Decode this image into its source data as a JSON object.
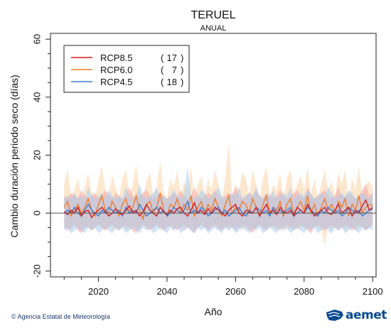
{
  "chart_data": {
    "type": "line",
    "title": "TERUEL",
    "subtitle": "ANUAL",
    "xlabel": "Año",
    "ylabel": "Cambio duración periodo seco (días)",
    "xlim": [
      2006,
      2101
    ],
    "ylim": [
      -22,
      62
    ],
    "xticks": [
      2020,
      2040,
      2060,
      2080,
      2100
    ],
    "yticks": [
      -20,
      0,
      20,
      40,
      60
    ],
    "grid": false,
    "legend_position": "top-left",
    "reference_line": 0,
    "x": [
      2010,
      2011,
      2012,
      2013,
      2014,
      2015,
      2016,
      2017,
      2018,
      2019,
      2020,
      2021,
      2022,
      2023,
      2024,
      2025,
      2026,
      2027,
      2028,
      2029,
      2030,
      2031,
      2032,
      2033,
      2034,
      2035,
      2036,
      2037,
      2038,
      2039,
      2040,
      2041,
      2042,
      2043,
      2044,
      2045,
      2046,
      2047,
      2048,
      2049,
      2050,
      2051,
      2052,
      2053,
      2054,
      2055,
      2056,
      2057,
      2058,
      2059,
      2060,
      2061,
      2062,
      2063,
      2064,
      2065,
      2066,
      2067,
      2068,
      2069,
      2070,
      2071,
      2072,
      2073,
      2074,
      2075,
      2076,
      2077,
      2078,
      2079,
      2080,
      2081,
      2082,
      2083,
      2084,
      2085,
      2086,
      2087,
      2088,
      2089,
      2090,
      2091,
      2092,
      2093,
      2094,
      2095,
      2096,
      2097,
      2098,
      2099,
      2100
    ],
    "series": [
      {
        "name": "RCP8.5",
        "models": "17",
        "color": "#d7191c",
        "band_color": "#f4a6a6",
        "values": [
          0.5,
          -0.5,
          1,
          0,
          2,
          -1,
          0.5,
          1,
          -1.5,
          0,
          1,
          2,
          0.5,
          -1,
          0,
          1.5,
          0,
          -0.5,
          1,
          2.5,
          0,
          1,
          -1,
          0.5,
          3,
          1,
          0,
          -1,
          2,
          0.5,
          -0.5,
          1,
          0,
          1.5,
          2,
          0,
          -1,
          1,
          3.5,
          0,
          1,
          -0.5,
          1.5,
          0,
          2,
          1,
          0,
          -1,
          1,
          2,
          3,
          0,
          -1,
          1,
          0.5,
          0,
          2,
          -1,
          1,
          3,
          0,
          1,
          -0.5,
          2,
          0.5,
          0,
          1,
          -1,
          2,
          1,
          0,
          3,
          1,
          -1,
          0,
          1,
          2,
          0,
          -0.5,
          1,
          3,
          0,
          1,
          2,
          -1,
          1,
          0,
          2.5,
          4.5,
          1,
          2
        ],
        "band_lo": [
          -5,
          -6,
          -5,
          -4,
          -6,
          -7,
          -5,
          -5,
          -6,
          -5,
          -4,
          -5,
          -6,
          -5,
          -4,
          -5,
          -6,
          -5,
          -4,
          -5,
          -6,
          -7,
          -5,
          -4,
          -5,
          -6,
          -5,
          -4,
          -5,
          -6,
          -5,
          -4,
          -5,
          -6,
          -5,
          -4,
          -5,
          -6,
          -7,
          -5,
          -4,
          -5,
          -6,
          -5,
          -4,
          -5,
          -6,
          -5,
          -4,
          -5,
          -6,
          -5,
          -4,
          -5,
          -6,
          -7,
          -5,
          -4,
          -5,
          -6,
          -5,
          -4,
          -5,
          -6,
          -5,
          -4,
          -5,
          -6,
          -5,
          -4,
          -5,
          -6,
          -7,
          -5,
          -4,
          -5,
          -6,
          -5,
          -4,
          -5,
          -6,
          -5,
          -4,
          -5,
          -6,
          -5,
          -4,
          -5,
          -6,
          -5,
          -4
        ],
        "band_hi": [
          6,
          5,
          7,
          6,
          5,
          8,
          6,
          5,
          6,
          7,
          5,
          6,
          8,
          6,
          5,
          7,
          6,
          5,
          6,
          9,
          6,
          5,
          6,
          7,
          8,
          6,
          5,
          6,
          7,
          6,
          5,
          6,
          7,
          6,
          8,
          6,
          5,
          6,
          9,
          6,
          5,
          6,
          7,
          6,
          8,
          6,
          5,
          6,
          7,
          6,
          9,
          6,
          5,
          6,
          7,
          6,
          8,
          6,
          5,
          7,
          6,
          5,
          6,
          8,
          6,
          5,
          6,
          7,
          8,
          6,
          5,
          9,
          6,
          5,
          6,
          7,
          8,
          6,
          5,
          6,
          9,
          6,
          5,
          7,
          6,
          5,
          6,
          8,
          10,
          6,
          7
        ]
      },
      {
        "name": "RCP6.0",
        "models": "7",
        "color": "#f17c2a",
        "band_color": "#fcd3a7",
        "values": [
          2,
          4,
          -1,
          1,
          3,
          0,
          2,
          5,
          1,
          -1,
          3,
          6,
          1,
          0,
          4,
          2,
          -1,
          3,
          5,
          0,
          2,
          6,
          1,
          -2,
          3,
          4,
          0,
          2,
          7,
          1,
          -1,
          3,
          2,
          5,
          0,
          3,
          1,
          6,
          -1,
          2,
          4,
          0,
          3,
          1,
          5,
          2,
          -1,
          3,
          6,
          0,
          2,
          1,
          4,
          3,
          0,
          5,
          2,
          -1,
          3,
          6,
          0,
          2,
          1,
          4,
          -1,
          3,
          5,
          0,
          2,
          4,
          1,
          6,
          0,
          3,
          -1,
          2,
          5,
          1,
          3,
          0,
          4,
          2,
          5,
          -1,
          3,
          1,
          6,
          0,
          2,
          3,
          2.5
        ],
        "band_lo": [
          -4,
          -5,
          -6,
          -4,
          -5,
          -6,
          -5,
          -4,
          -6,
          -5,
          -4,
          -5,
          -6,
          -4,
          -5,
          -6,
          -5,
          -4,
          -6,
          -5,
          -4,
          -5,
          -6,
          -4,
          -5,
          -6,
          -5,
          -4,
          -6,
          -5,
          -4,
          -5,
          -6,
          -4,
          -5,
          -6,
          -5,
          -4,
          -6,
          -5,
          -4,
          -5,
          -6,
          -4,
          -5,
          -6,
          -5,
          -4,
          -6,
          -5,
          -4,
          -5,
          -6,
          -4,
          -5,
          -6,
          -5,
          -4,
          -6,
          -5,
          -4,
          -5,
          -6,
          -4,
          -5,
          -6,
          -5,
          -4,
          -6,
          -5,
          -4,
          -5,
          -6,
          -4,
          -5,
          -6,
          -11,
          -4,
          -6,
          -5,
          -4,
          -5,
          -6,
          -4,
          -5,
          -6,
          -5,
          -4,
          -6,
          -5,
          -4
        ],
        "band_hi": [
          10,
          15,
          6,
          8,
          12,
          5,
          9,
          14,
          7,
          6,
          11,
          16,
          8,
          6,
          13,
          9,
          5,
          12,
          15,
          6,
          10,
          17,
          8,
          5,
          11,
          14,
          6,
          9,
          18,
          7,
          5,
          12,
          9,
          15,
          6,
          11,
          8,
          16,
          5,
          10,
          13,
          6,
          12,
          8,
          15,
          10,
          5,
          12,
          24,
          6,
          10,
          8,
          14,
          12,
          6,
          15,
          10,
          5,
          12,
          16,
          6,
          10,
          8,
          14,
          5,
          12,
          15,
          6,
          10,
          13,
          8,
          16,
          6,
          12,
          5,
          10,
          15,
          8,
          11,
          6,
          14,
          10,
          15,
          5,
          12,
          8,
          16,
          6,
          10,
          11,
          9
        ]
      },
      {
        "name": "RCP4.5",
        "models": "18",
        "color": "#3a7fd5",
        "band_color": "#a9cdef",
        "values": [
          0,
          1,
          0,
          2,
          0,
          -1,
          1,
          3,
          1,
          0,
          -1,
          1,
          0,
          2,
          1,
          0,
          1,
          -1,
          2,
          0,
          1,
          0,
          3,
          1,
          -1,
          0,
          1,
          2,
          0,
          1,
          -1,
          0,
          2,
          1,
          0,
          1,
          4,
          0,
          1,
          0,
          2,
          1,
          -1,
          0,
          1,
          2,
          0,
          1,
          -1,
          0,
          1,
          2,
          0,
          -1,
          1,
          0,
          2,
          1,
          0,
          1,
          -1,
          2,
          0,
          1,
          0,
          1,
          2,
          -1,
          0,
          1,
          0,
          2,
          1,
          0,
          -1,
          1,
          0,
          2,
          1,
          0,
          1,
          -1,
          0,
          2,
          1,
          0,
          1,
          -1,
          0,
          1,
          1.5
        ],
        "band_lo": [
          -6,
          -5,
          -7,
          -6,
          -5,
          -6,
          -7,
          -5,
          -6,
          -5,
          -7,
          -6,
          -5,
          -6,
          -7,
          -5,
          -6,
          -5,
          -7,
          -6,
          -5,
          -6,
          -7,
          -5,
          -6,
          -5,
          -7,
          -6,
          -5,
          -6,
          -7,
          -5,
          -6,
          -5,
          -7,
          -6,
          -5,
          -6,
          -7,
          -5,
          -6,
          -5,
          -7,
          -6,
          -5,
          -6,
          -7,
          -5,
          -6,
          -5,
          -7,
          -6,
          -5,
          -6,
          -7,
          -5,
          -6,
          -5,
          -7,
          -6,
          -5,
          -6,
          -7,
          -5,
          -6,
          -5,
          -7,
          -6,
          -5,
          -6,
          -7,
          -5,
          -6,
          -5,
          -7,
          -6,
          -5,
          -6,
          -7,
          -5,
          -6,
          -5,
          -7,
          -6,
          -5,
          -6,
          -7,
          -5,
          -6,
          -5,
          -6
        ],
        "band_hi": [
          5,
          6,
          5,
          7,
          5,
          6,
          5,
          9,
          6,
          5,
          6,
          7,
          5,
          8,
          6,
          5,
          6,
          5,
          9,
          6,
          5,
          6,
          10,
          6,
          5,
          6,
          7,
          9,
          5,
          6,
          5,
          6,
          8,
          6,
          5,
          7,
          16,
          6,
          5,
          6,
          8,
          7,
          5,
          6,
          7,
          9,
          6,
          5,
          6,
          7,
          6,
          9,
          5,
          6,
          7,
          6,
          9,
          6,
          5,
          7,
          6,
          8,
          5,
          6,
          7,
          6,
          9,
          5,
          6,
          7,
          6,
          8,
          7,
          5,
          6,
          7,
          6,
          9,
          7,
          5,
          6,
          7,
          6,
          8,
          7,
          5,
          6,
          7,
          6,
          5,
          7
        ]
      }
    ]
  },
  "footer": {
    "credit": "Agencia Estatal de Meteorología",
    "logo_text": "aemet"
  }
}
